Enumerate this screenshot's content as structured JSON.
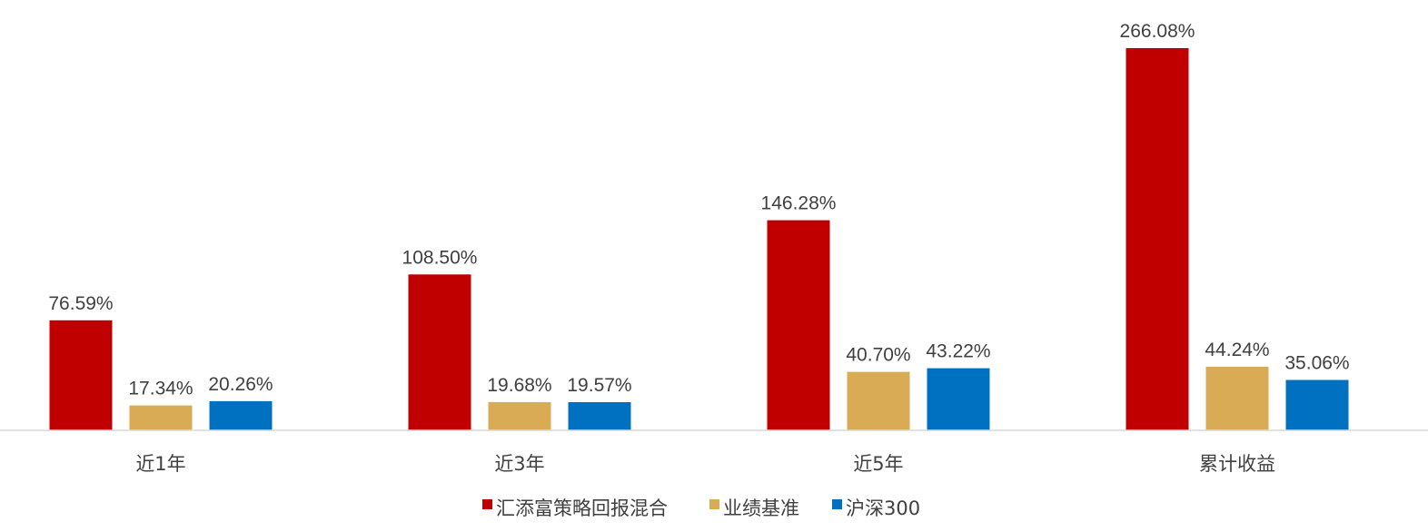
{
  "chart_data": {
    "type": "bar",
    "categories": [
      "近1年",
      "近3年",
      "近5年",
      "累计收益"
    ],
    "series": [
      {
        "name": "汇添富策略回报混合",
        "color": "#C00000",
        "values": [
          76.59,
          108.5,
          146.28,
          266.08
        ],
        "labels": [
          "76.59%",
          "108.50%",
          "146.28%",
          "266.08%"
        ]
      },
      {
        "name": "业绩基准",
        "color": "#D9AB55",
        "values": [
          17.34,
          19.68,
          40.7,
          44.24
        ],
        "labels": [
          "17.34%",
          "19.68%",
          "40.70%",
          "44.24%"
        ]
      },
      {
        "name": "沪深300",
        "color": "#0070C0",
        "values": [
          20.26,
          19.57,
          43.22,
          35.06
        ],
        "labels": [
          "20.26%",
          "19.57%",
          "43.22%",
          "35.06%"
        ]
      }
    ],
    "title": "",
    "xlabel": "",
    "ylabel": "",
    "ylim": [
      0,
      300
    ],
    "y_axis_visible": false,
    "grid": false,
    "legend_position": "bottom-center",
    "axis_color": "#D9D9D9"
  }
}
